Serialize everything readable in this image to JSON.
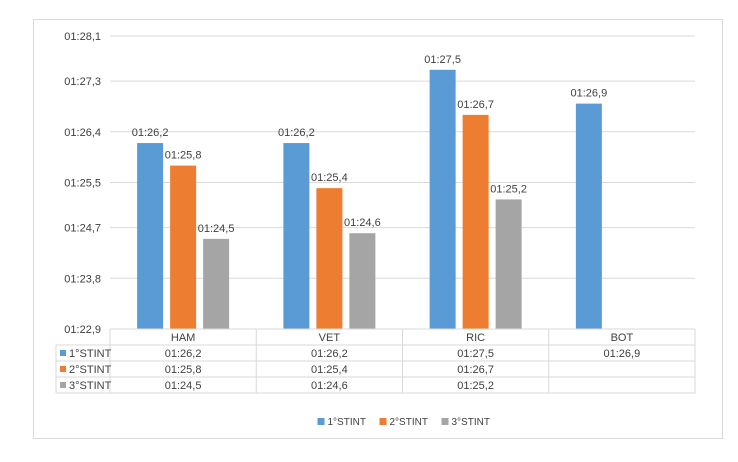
{
  "chart_data": {
    "type": "bar",
    "categories": [
      "HAM",
      "VET",
      "RIC",
      "BOT"
    ],
    "series": [
      {
        "name": "1°STINT",
        "color": "#5b9bd5",
        "values": [
          86.2,
          86.2,
          87.5,
          86.9
        ],
        "labels": [
          "01:26,2",
          "01:26,2",
          "01:27,5",
          "01:26,9"
        ]
      },
      {
        "name": "2°STINT",
        "color": "#ed7d31",
        "values": [
          85.8,
          85.4,
          86.7,
          null
        ],
        "labels": [
          "01:25,8",
          "01:25,4",
          "01:26,7",
          ""
        ]
      },
      {
        "name": "3°STINT",
        "color": "#a5a5a5",
        "values": [
          84.5,
          84.6,
          85.2,
          null
        ],
        "labels": [
          "01:24,5",
          "01:24,6",
          "01:25,2",
          ""
        ]
      }
    ],
    "ylim": [
      82.9,
      88.1
    ],
    "yticks": [
      82.9,
      83.8,
      84.7,
      85.5,
      86.4,
      87.3,
      88.1
    ],
    "ytick_labels": [
      "01:22,9",
      "01:23,8",
      "01:24,7",
      "01:25,5",
      "01:26,4",
      "01:27,3",
      "01:28,1"
    ],
    "grid": true,
    "legend_position": "bottom",
    "data_table": true
  }
}
